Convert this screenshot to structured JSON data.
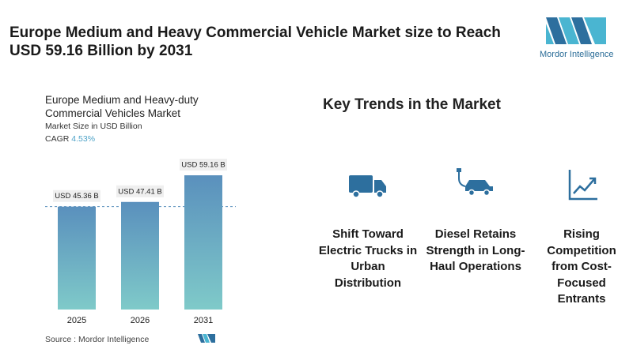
{
  "title": "Europe Medium and Heavy Commercial Vehicle Market size to Reach USD 59.16 Billion by 2031",
  "logo": "Mordor Intelligence",
  "chart_data": {
    "type": "bar",
    "title": "Europe Medium and Heavy-duty Commercial Vehicles Market",
    "subtitle": "Market Size in USD Billion",
    "cagr_label": "CAGR",
    "cagr": "4.53%",
    "categories": [
      "2025",
      "2026",
      "2031"
    ],
    "values": [
      45.36,
      47.41,
      59.16
    ],
    "value_labels": [
      "USD 45.36 B",
      "USD 47.41 B",
      "USD 59.16 B"
    ],
    "colors": [
      "#5a90bd",
      "#7fcac9"
    ],
    "source": "Source : Mordor Intelligence"
  },
  "trends": {
    "title": "Key Trends in the Market",
    "items": [
      "Shift Toward Electric Trucks in Urban Distribution",
      "Diesel Retains Strength in Long-Haul Operations",
      "Rising Competition from Cost-Focused Entrants"
    ]
  }
}
